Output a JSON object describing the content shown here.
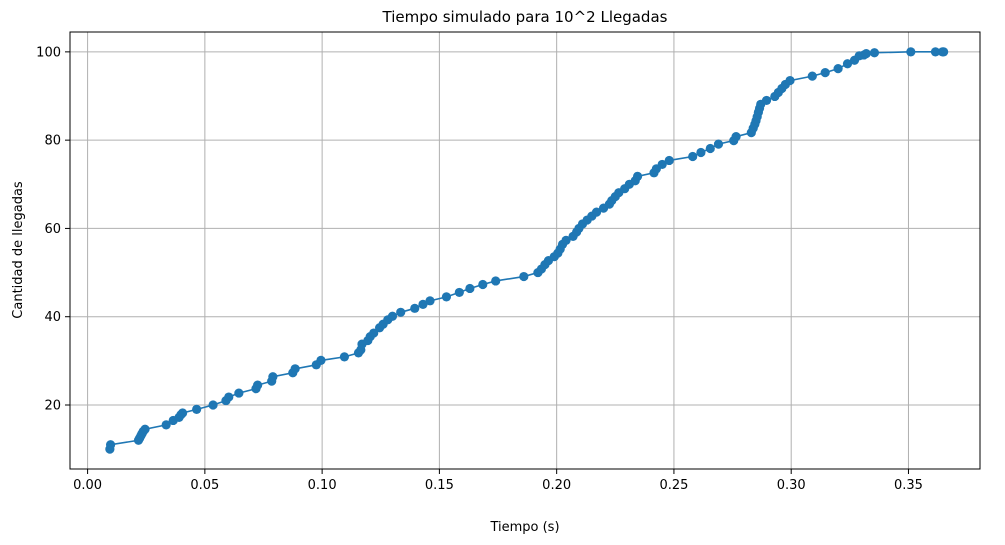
{
  "chart_data": {
    "type": "line",
    "title": "Tiempo simulado para 10^2 Llegadas",
    "xlabel": "Tiempo (s)",
    "ylabel": "Cantidad de llegadas",
    "xlim": [
      -0.0075,
      0.3805
    ],
    "ylim": [
      5.5,
      104.5
    ],
    "xticks": [
      0.0,
      0.05,
      0.1,
      0.15,
      0.2,
      0.25,
      0.3,
      0.35
    ],
    "xtick_labels": [
      "0.00",
      "0.05",
      "0.10",
      "0.15",
      "0.20",
      "0.25",
      "0.30",
      "0.35"
    ],
    "yticks": [
      20,
      40,
      60,
      80,
      100
    ],
    "ytick_labels": [
      "20",
      "40",
      "60",
      "80",
      "100"
    ],
    "grid": true,
    "line_color": "#1f77b4",
    "marker": "circle",
    "series": [
      {
        "x": [
          0.0095,
          0.0098,
          0.0217,
          0.0222,
          0.0227,
          0.0232,
          0.0237,
          0.0245,
          0.0335,
          0.0365,
          0.039,
          0.0398,
          0.0405,
          0.0465,
          0.0535,
          0.059,
          0.0602,
          0.0645,
          0.0718,
          0.0725,
          0.0785,
          0.079,
          0.0875,
          0.0885,
          0.0975,
          0.0995,
          0.1095,
          0.1155,
          0.1165,
          0.117,
          0.1195,
          0.1205,
          0.122,
          0.1245,
          0.126,
          0.128,
          0.13,
          0.1335,
          0.1395,
          0.143,
          0.146,
          0.153,
          0.1585,
          0.163,
          0.1685,
          0.174,
          0.186,
          0.192,
          0.1935,
          0.195,
          0.1965,
          0.199,
          0.2005,
          0.2015,
          0.2025,
          0.204,
          0.207,
          0.2085,
          0.2095,
          0.211,
          0.213,
          0.215,
          0.217,
          0.22,
          0.2225,
          0.2235,
          0.225,
          0.2265,
          0.229,
          0.231,
          0.2335,
          0.2345,
          0.2415,
          0.2425,
          0.245,
          0.248,
          0.258,
          0.2615,
          0.2655,
          0.269,
          0.2755,
          0.2765,
          0.283,
          0.2838,
          0.2845,
          0.285,
          0.2855,
          0.286,
          0.2865,
          0.287,
          0.2895,
          0.293,
          0.2945,
          0.296,
          0.2975,
          0.2995,
          0.309,
          0.3145,
          0.32,
          0.324,
          0.327,
          0.329,
          0.331,
          0.332,
          0.3355,
          0.351,
          0.3615,
          0.3645,
          0.365
        ],
        "y": [
          10,
          11,
          12,
          12.5,
          13,
          13.5,
          14,
          14.5,
          15.5,
          16.5,
          17.2,
          17.8,
          18.2,
          19,
          20,
          21,
          21.8,
          22.7,
          23.7,
          24.5,
          25.4,
          26.4,
          27.3,
          28.2,
          29.1,
          30.1,
          30.9,
          31.8,
          32.5,
          33.8,
          34.6,
          35.5,
          36.3,
          37.5,
          38.3,
          39.3,
          40.1,
          41,
          41.9,
          42.8,
          43.6,
          44.5,
          45.5,
          46.4,
          47.3,
          48.1,
          49.1,
          50,
          50.8,
          51.8,
          52.7,
          53.6,
          54.4,
          55.3,
          56.4,
          57.3,
          58.2,
          59.2,
          60,
          61,
          61.9,
          62.8,
          63.7,
          64.6,
          65.5,
          66.3,
          67.2,
          68.1,
          69,
          70,
          70.8,
          71.8,
          72.6,
          73.5,
          74.5,
          75.4,
          76.3,
          77.2,
          78.1,
          79.1,
          79.9,
          80.8,
          81.7,
          82.7,
          83.6,
          84.4,
          85.3,
          86.3,
          87.2,
          88.1,
          89,
          89.9,
          90.8,
          91.7,
          92.6,
          93.5,
          94.5,
          95.3,
          96.2,
          97.3,
          98.1,
          99.1,
          99.3,
          99.6,
          99.8,
          100,
          100,
          100,
          100
        ]
      }
    ]
  }
}
